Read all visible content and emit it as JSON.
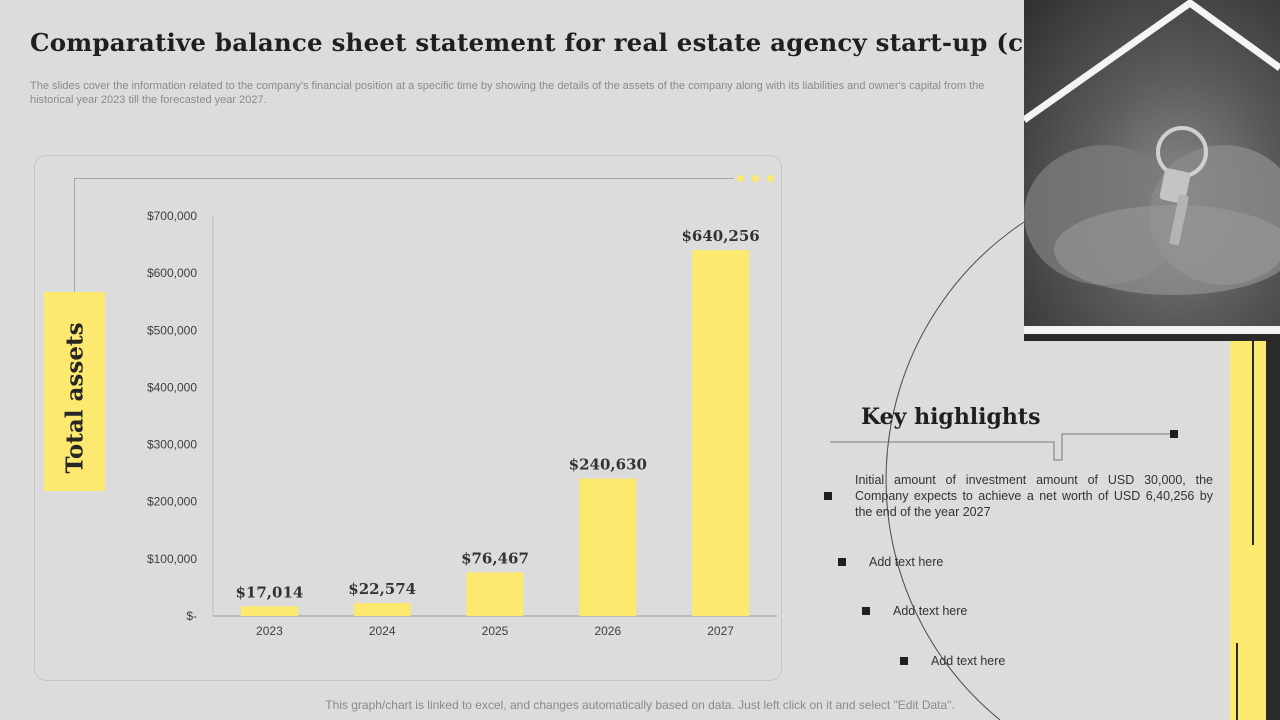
{
  "header": {
    "title": "Comparative balance sheet statement for real estate agency start-up (cont.)",
    "subtitle": "The slides cover the information related to the company's financial position at a specific time by showing the details of the assets of the company along with its liabilities and owner's capital from the historical year 2023 till the forecasted year 2027."
  },
  "chart_data": {
    "type": "bar",
    "title": "Total assets",
    "categories": [
      "2023",
      "2024",
      "2025",
      "2026",
      "2027"
    ],
    "values": [
      17014,
      22574,
      76467,
      240630,
      640256
    ],
    "data_labels": [
      "$17,014",
      "$22,574",
      "$76,467",
      "$240,630",
      "$640,256"
    ],
    "ylim": [
      0,
      700000
    ],
    "yticks": [
      0,
      100000,
      200000,
      300000,
      400000,
      500000,
      600000,
      700000
    ],
    "ytick_labels": [
      "$-",
      "$100,000",
      "$200,000",
      "$300,000",
      "$400,000",
      "$500,000",
      "$600,000",
      "$700,000"
    ],
    "xlabel": "",
    "ylabel": "Total assets",
    "bar_color": "#fde96f"
  },
  "highlights": {
    "title": "Key highlights",
    "main_text": "Initial amount of investment amount of USD 30,000, the Company expects to achieve  a net worth of USD 6,40,256 by the end of the year 2027",
    "items": [
      "Add text here",
      "Add text here",
      "Add text here"
    ]
  },
  "footer": {
    "note": "This graph/chart is linked to excel,  and changes automatically based on data. Just left click on it and select \"Edit Data\"."
  },
  "colors": {
    "accent": "#fde96f",
    "background": "#dcdcdc",
    "dark": "#1f1f1f"
  }
}
